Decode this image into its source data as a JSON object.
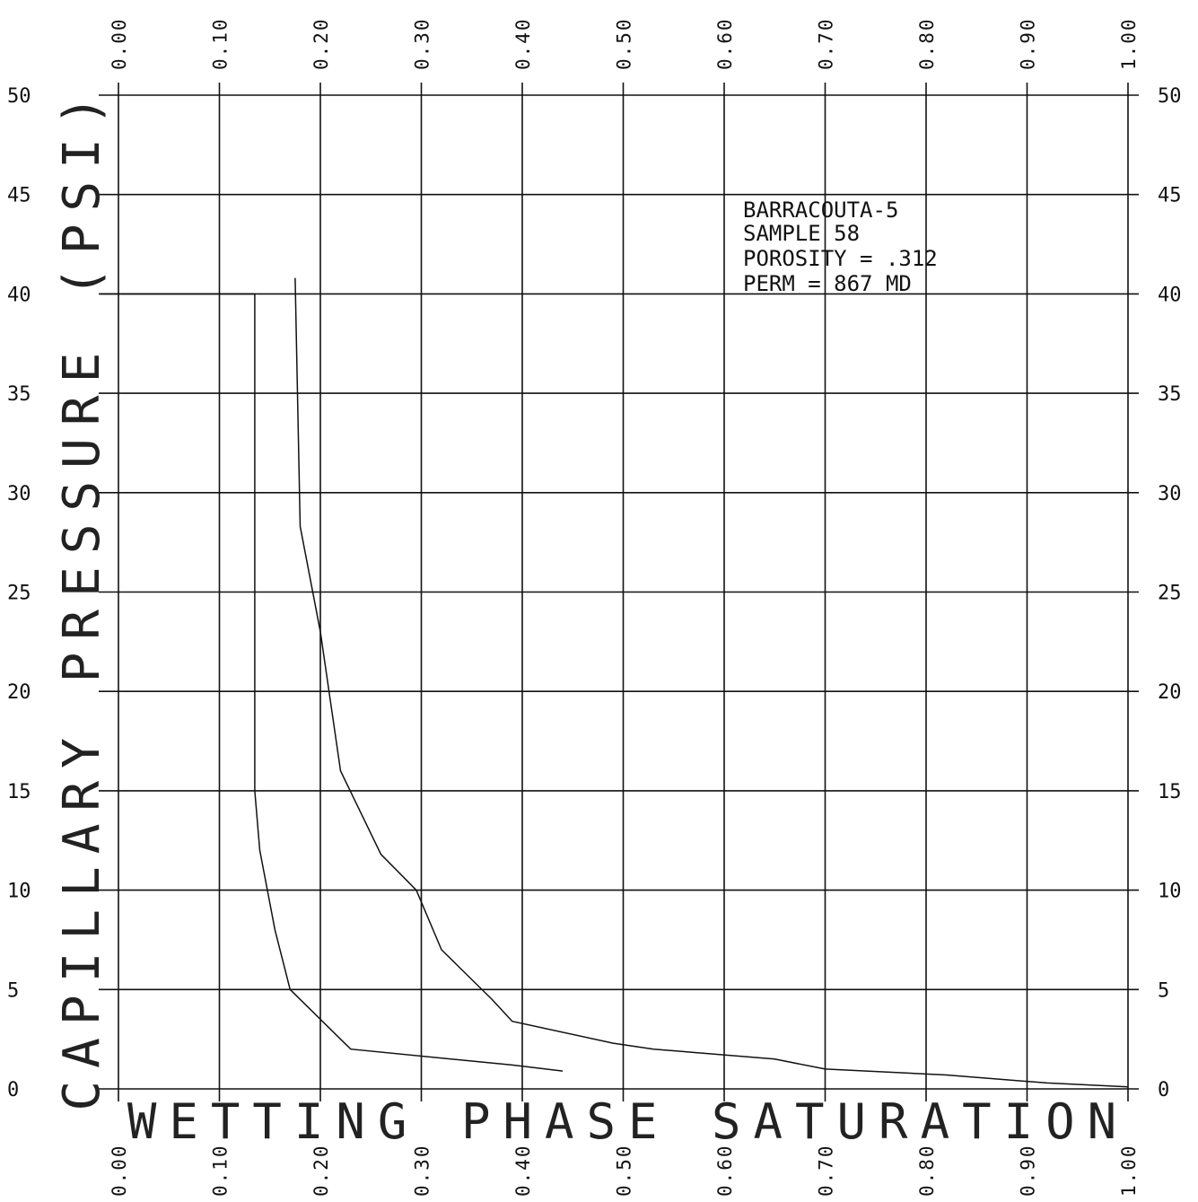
{
  "chart_data": {
    "type": "line",
    "xlabel": "WETTING PHASE SATURATION",
    "ylabel": "CAPILLARY PRESSURE (PSI)",
    "xlim": [
      0,
      1
    ],
    "ylim": [
      0,
      50
    ],
    "grid": true,
    "x_ticks": [
      "0.00",
      "0.10",
      "0.20",
      "0.30",
      "0.40",
      "0.50",
      "0.60",
      "0.70",
      "0.80",
      "0.90",
      "1.00"
    ],
    "y_ticks": [
      "0",
      "5",
      "10",
      "15",
      "20",
      "25",
      "30",
      "35",
      "40",
      "45",
      "50"
    ],
    "annotation": [
      "BARRACOUTA-5",
      "SAMPLE 58",
      "POROSITY = .312",
      "PERM = 867 MD"
    ],
    "series": [
      {
        "x": [
          0.135,
          0.135,
          0.14,
          0.155,
          0.17,
          0.23,
          0.39,
          0.44
        ],
        "y": [
          40,
          15,
          12,
          8,
          5,
          2,
          1.2,
          0.9
        ]
      },
      {
        "x": [
          0.175,
          0.18,
          0.2,
          0.22,
          0.26,
          0.295,
          0.32,
          0.37,
          0.39,
          0.49,
          0.53,
          0.65,
          0.7,
          0.82,
          0.92,
          1.0
        ],
        "y": [
          40.8,
          28.3,
          23,
          16,
          11.8,
          10,
          7,
          4.5,
          3.4,
          2.3,
          2.0,
          1.5,
          1.0,
          0.7,
          0.3,
          0.1
        ]
      }
    ]
  }
}
